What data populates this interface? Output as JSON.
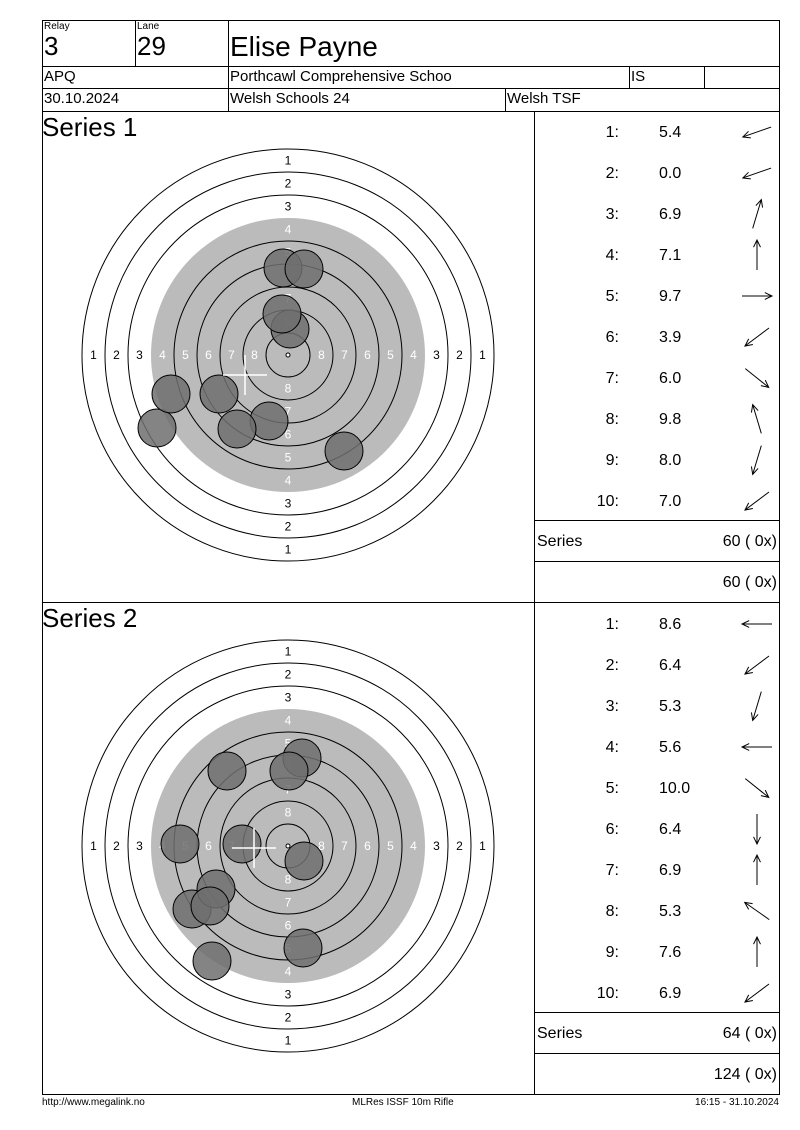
{
  "header": {
    "relay_label": "Relay",
    "relay_value": "3",
    "lane_label": "Lane",
    "lane_value": "29",
    "shooter_name": "Elise Payne",
    "class_code": "APQ",
    "club": "Porthcawl Comprehensive Schoo",
    "discipline_code": "IS",
    "extra": "",
    "date": "30.10.2024",
    "competition": "Welsh Schools 24",
    "organizer": "Welsh TSF"
  },
  "series": [
    {
      "title": "Series 1",
      "shots": [
        {
          "num": "1:",
          "value": "5.4",
          "arrow": "left-slight-down"
        },
        {
          "num": "2:",
          "value": "0.0",
          "arrow": "left-slight-down"
        },
        {
          "num": "3:",
          "value": "6.9",
          "arrow": "up-slight-right"
        },
        {
          "num": "4:",
          "value": "7.1",
          "arrow": "up"
        },
        {
          "num": "5:",
          "value": "9.7",
          "arrow": "right"
        },
        {
          "num": "6:",
          "value": "3.9",
          "arrow": "down-left"
        },
        {
          "num": "7:",
          "value": "6.0",
          "arrow": "down-right"
        },
        {
          "num": "8:",
          "value": "9.8",
          "arrow": "up-slight-left"
        },
        {
          "num": "9:",
          "value": "8.0",
          "arrow": "down-slight-left"
        },
        {
          "num": "10:",
          "value": "7.0",
          "arrow": "down-left"
        }
      ],
      "series_label": "Series",
      "series_total": "60 ( 0x)",
      "running_total": "60 ( 0x)",
      "target_labels": [
        "1",
        "2",
        "3",
        "4",
        "5",
        "6",
        "7",
        "8"
      ]
    },
    {
      "title": "Series 2",
      "shots": [
        {
          "num": "1:",
          "value": "8.6",
          "arrow": "left"
        },
        {
          "num": "2:",
          "value": "6.4",
          "arrow": "down-left"
        },
        {
          "num": "3:",
          "value": "5.3",
          "arrow": "down-slight-left"
        },
        {
          "num": "4:",
          "value": "5.6",
          "arrow": "left"
        },
        {
          "num": "5:",
          "value": "10.0",
          "arrow": "down-right"
        },
        {
          "num": "6:",
          "value": "6.4",
          "arrow": "down"
        },
        {
          "num": "7:",
          "value": "6.9",
          "arrow": "up"
        },
        {
          "num": "8:",
          "value": "5.3",
          "arrow": "up-left"
        },
        {
          "num": "9:",
          "value": "7.6",
          "arrow": "up"
        },
        {
          "num": "10:",
          "value": "6.9",
          "arrow": "down-left"
        }
      ],
      "series_label": "Series",
      "series_total": "64 ( 0x)",
      "running_total": "124 ( 0x)",
      "target_labels": [
        "1",
        "2",
        "3",
        "4",
        "5",
        "6",
        "7",
        "8"
      ]
    }
  ],
  "footer": {
    "url": "http://www.megalink.no",
    "software": "MLRes ISSF 10m Rifle",
    "timestamp": "16:15 - 31.10.2024"
  },
  "colors": {
    "target_black": "#bbbbbb",
    "shot_fill": "#6e6e6e",
    "line": "#000000"
  }
}
